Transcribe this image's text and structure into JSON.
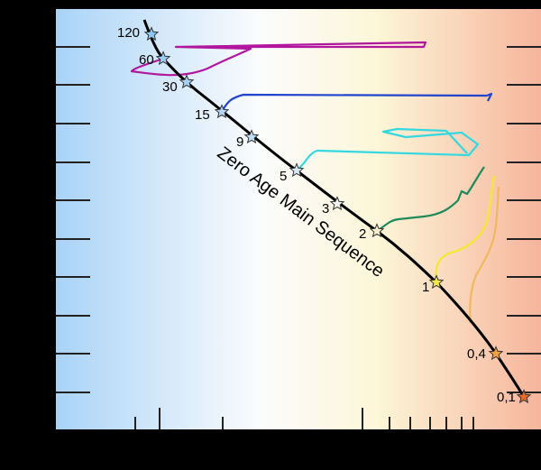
{
  "curve_label": "Zero Age Main Sequence",
  "masses": [
    "120",
    "60",
    "30",
    "15",
    "9",
    "5",
    "3",
    "2",
    "1",
    "0,4",
    "0,1"
  ]
}
